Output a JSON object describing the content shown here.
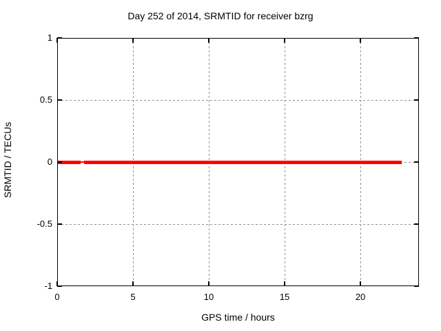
{
  "chart_data": {
    "type": "line",
    "title": "Day 252 of 2014, SRMTID for receiver bzrg",
    "xlabel": "GPS time / hours",
    "ylabel": "SRMTID / TECUs",
    "xlim": [
      0,
      23.86
    ],
    "ylim": [
      -1,
      1
    ],
    "xticks": [
      0,
      5,
      10,
      15,
      20
    ],
    "yticks": [
      -1,
      -0.5,
      0,
      0.5,
      1
    ],
    "grid": true,
    "legend": "none",
    "series": [
      {
        "name": "SRMTID",
        "color": "#ff0000",
        "y_value": 0,
        "segments": [
          {
            "x_start": 0,
            "x_end": 1.55,
            "y": 0,
            "style": "thick"
          },
          {
            "x_start": 1.55,
            "x_end": 1.77,
            "y": 0,
            "style": "thin"
          },
          {
            "x_start": 1.77,
            "x_end": 22.73,
            "y": 0,
            "style": "thick"
          }
        ]
      }
    ]
  },
  "colors": {
    "series": "#ff0000",
    "grid": "#909090",
    "frame": "#000000",
    "text": "#000000",
    "background": "#ffffff"
  }
}
